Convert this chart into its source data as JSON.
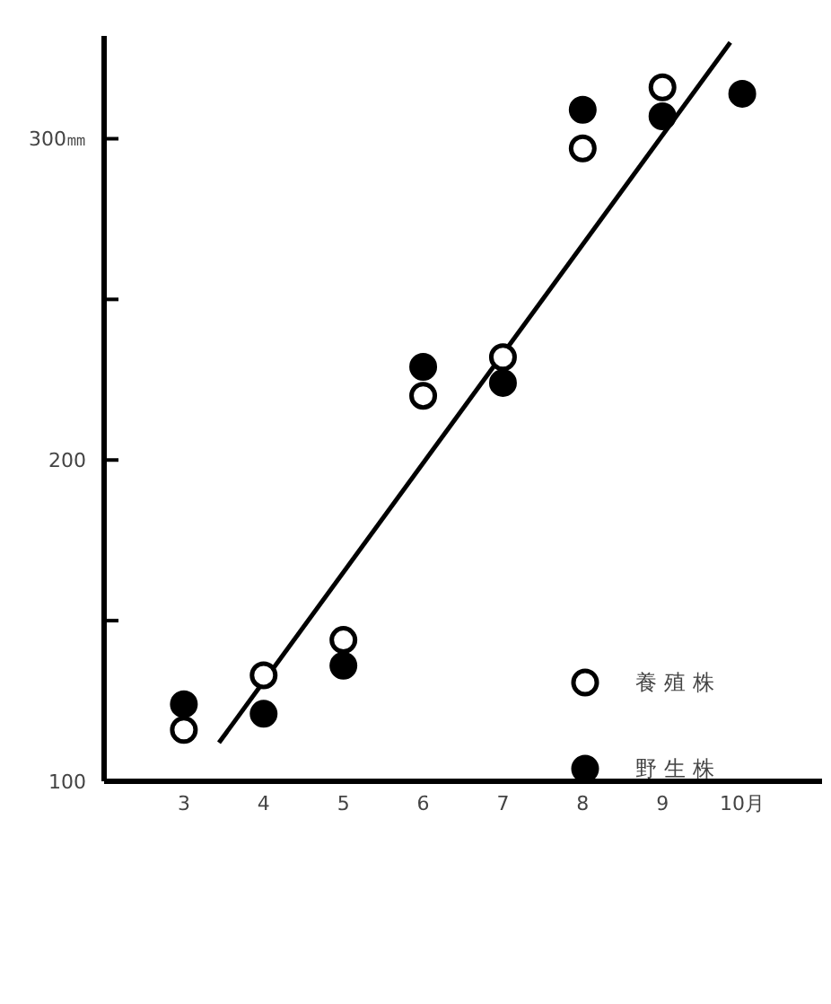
{
  "chart_data": {
    "type": "scatter",
    "xlim": [
      2,
      11
    ],
    "xticks": [
      3,
      4,
      5,
      6,
      7,
      8,
      9,
      {
        "value": 10,
        "label": "10月"
      }
    ],
    "ylim": [
      100,
      332
    ],
    "yticks": [
      100,
      {
        "value": 150,
        "label": null
      },
      200,
      {
        "value": 250,
        "label": null
      },
      {
        "value": 300,
        "label": "300㎜"
      }
    ],
    "legend": "right",
    "marker": "circle",
    "series": [
      {
        "name": "養殖株",
        "color": "#ffffff",
        "x": [
          3,
          4,
          5,
          6,
          7,
          8,
          9
        ],
        "values": [
          116,
          133,
          144,
          220,
          232,
          297,
          316
        ]
      },
      {
        "name": "野生株",
        "color": "#000000",
        "x": [
          3,
          4,
          5,
          6,
          7,
          8,
          9,
          10
        ],
        "values": [
          124,
          121,
          136,
          229,
          224,
          309,
          307,
          314
        ]
      },
      {
        "type": "line",
        "color": "#000000",
        "marker": "none",
        "x": [
          3.44,
          9.85
        ],
        "values": [
          112,
          330
        ]
      }
    ]
  }
}
